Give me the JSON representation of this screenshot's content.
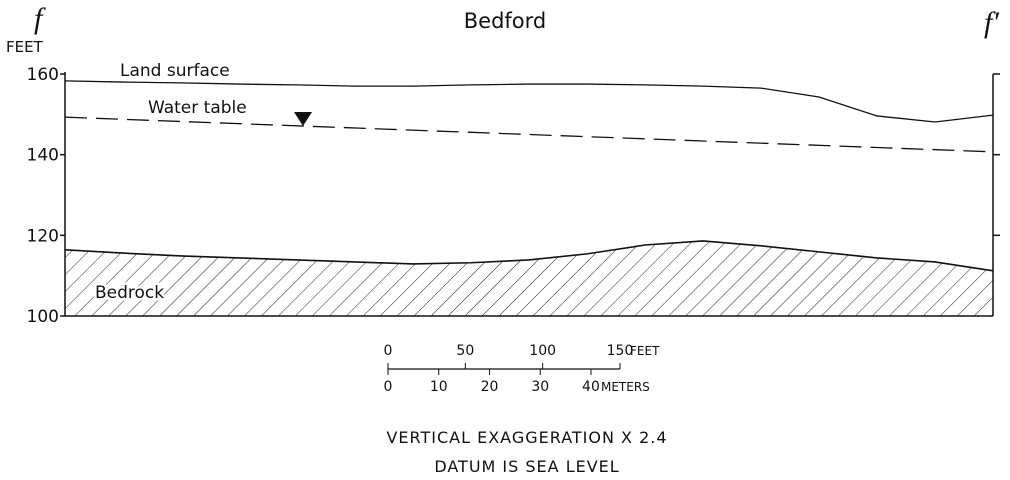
{
  "title": "Bedford",
  "section_marks": {
    "left": "f",
    "right": "f′"
  },
  "axis": {
    "label": "FEET",
    "range": [
      100,
      160
    ],
    "ticks": [
      100,
      120,
      140,
      160
    ]
  },
  "profiles": {
    "land_surface": {
      "label": "Land surface",
      "values": [
        158.3,
        158.0,
        157.8,
        157.5,
        157.3,
        157.0,
        157.0,
        157.3,
        157.5,
        157.5,
        157.3,
        157.0,
        156.5,
        154.3,
        149.6,
        148.1,
        149.8
      ]
    },
    "water_table": {
      "label": "Water table",
      "values": [
        149.3,
        140.7
      ]
    },
    "bedrock": {
      "label": "Bedrock",
      "values": [
        116.4,
        115.6,
        114.9,
        114.4,
        113.9,
        113.4,
        112.9,
        113.2,
        113.9,
        115.4,
        117.6,
        118.6,
        117.4,
        115.9,
        114.4,
        113.4,
        111.2
      ]
    }
  },
  "scale_bar": {
    "feet": {
      "unit": "FEET",
      "ticks": [
        0,
        50,
        100,
        150
      ]
    },
    "meters": {
      "unit": "METERS",
      "ticks": [
        0,
        10,
        20,
        30,
        40
      ]
    }
  },
  "notes": [
    "VERTICAL EXAGGERATION X 2.4",
    "DATUM IS SEA LEVEL"
  ]
}
